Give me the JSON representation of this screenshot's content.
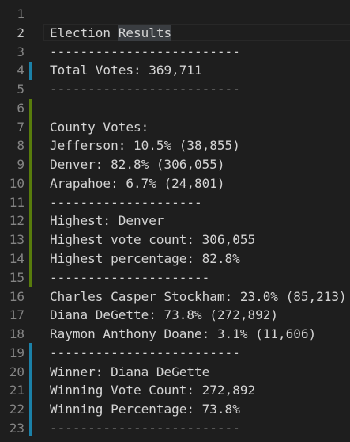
{
  "editor": {
    "lines": [
      {
        "number": 1
      },
      {
        "number": 2,
        "text": "Election Results"
      },
      {
        "number": 3,
        "text": "-------------------------"
      },
      {
        "number": 4,
        "text": "Total Votes: 369,711"
      },
      {
        "number": 5,
        "text": "-------------------------"
      },
      {
        "number": 6
      },
      {
        "number": 7,
        "text": "County Votes:"
      },
      {
        "number": 8,
        "text": "Jefferson: 10.5% (38,855)"
      },
      {
        "number": 9,
        "text": "Denver: 82.8% (306,055)"
      },
      {
        "number": 10,
        "text": "Arapahoe: 6.7% (24,801)"
      },
      {
        "number": 11,
        "text": "--------------------"
      },
      {
        "number": 12,
        "text": "Highest: Denver"
      },
      {
        "number": 13,
        "text": "Highest vote count: 306,055"
      },
      {
        "number": 14,
        "text": "Highest percentage: 82.8%"
      },
      {
        "number": 15,
        "text": "---------------------"
      },
      {
        "number": 16,
        "text": "Charles Casper Stockham: 23.0% (85,213)"
      },
      {
        "number": 17,
        "text": "Diana DeGette: 73.8% (272,892)"
      },
      {
        "number": 18,
        "text": "Raymon Anthony Doane: 3.1% (11,606)"
      },
      {
        "number": 19,
        "text": "-------------------------"
      },
      {
        "number": 20,
        "text": "Winner: Diana DeGette"
      },
      {
        "number": 21,
        "text": "Winning Vote Count: 272,892"
      },
      {
        "number": 22,
        "text": "Winning Percentage: 73.8%"
      },
      {
        "number": 23,
        "text": "-------------------------"
      }
    ]
  }
}
